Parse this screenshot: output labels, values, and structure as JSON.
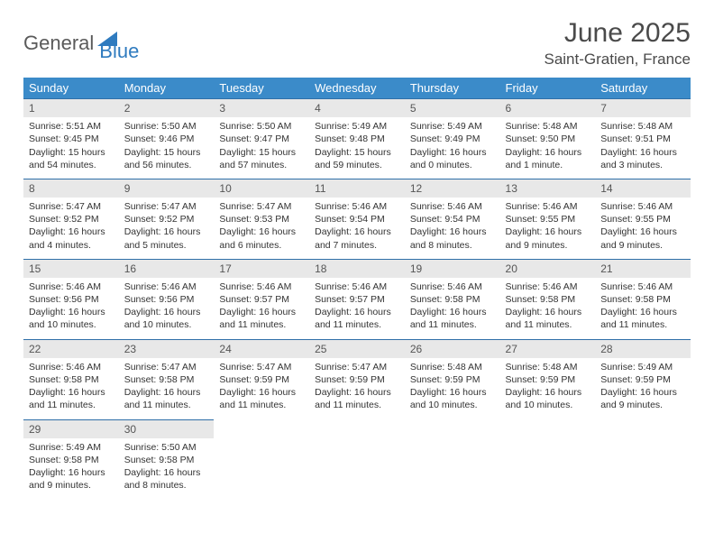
{
  "logo": {
    "text1": "General",
    "text2": "Blue"
  },
  "title": "June 2025",
  "location": "Saint-Gratien, France",
  "colors": {
    "header_bg": "#3b8bc9",
    "header_text": "#ffffff",
    "daynum_bg": "#e8e8e8",
    "daynum_border": "#2f6fa8",
    "text": "#333333",
    "logo_gray": "#5a5a5a",
    "logo_blue": "#2f7bbf"
  },
  "weekdays": [
    "Sunday",
    "Monday",
    "Tuesday",
    "Wednesday",
    "Thursday",
    "Friday",
    "Saturday"
  ],
  "weeks": [
    {
      "nums": [
        "1",
        "2",
        "3",
        "4",
        "5",
        "6",
        "7"
      ],
      "cells": [
        {
          "sunrise": "Sunrise: 5:51 AM",
          "sunset": "Sunset: 9:45 PM",
          "day1": "Daylight: 15 hours",
          "day2": "and 54 minutes."
        },
        {
          "sunrise": "Sunrise: 5:50 AM",
          "sunset": "Sunset: 9:46 PM",
          "day1": "Daylight: 15 hours",
          "day2": "and 56 minutes."
        },
        {
          "sunrise": "Sunrise: 5:50 AM",
          "sunset": "Sunset: 9:47 PM",
          "day1": "Daylight: 15 hours",
          "day2": "and 57 minutes."
        },
        {
          "sunrise": "Sunrise: 5:49 AM",
          "sunset": "Sunset: 9:48 PM",
          "day1": "Daylight: 15 hours",
          "day2": "and 59 minutes."
        },
        {
          "sunrise": "Sunrise: 5:49 AM",
          "sunset": "Sunset: 9:49 PM",
          "day1": "Daylight: 16 hours",
          "day2": "and 0 minutes."
        },
        {
          "sunrise": "Sunrise: 5:48 AM",
          "sunset": "Sunset: 9:50 PM",
          "day1": "Daylight: 16 hours",
          "day2": "and 1 minute."
        },
        {
          "sunrise": "Sunrise: 5:48 AM",
          "sunset": "Sunset: 9:51 PM",
          "day1": "Daylight: 16 hours",
          "day2": "and 3 minutes."
        }
      ]
    },
    {
      "nums": [
        "8",
        "9",
        "10",
        "11",
        "12",
        "13",
        "14"
      ],
      "cells": [
        {
          "sunrise": "Sunrise: 5:47 AM",
          "sunset": "Sunset: 9:52 PM",
          "day1": "Daylight: 16 hours",
          "day2": "and 4 minutes."
        },
        {
          "sunrise": "Sunrise: 5:47 AM",
          "sunset": "Sunset: 9:52 PM",
          "day1": "Daylight: 16 hours",
          "day2": "and 5 minutes."
        },
        {
          "sunrise": "Sunrise: 5:47 AM",
          "sunset": "Sunset: 9:53 PM",
          "day1": "Daylight: 16 hours",
          "day2": "and 6 minutes."
        },
        {
          "sunrise": "Sunrise: 5:46 AM",
          "sunset": "Sunset: 9:54 PM",
          "day1": "Daylight: 16 hours",
          "day2": "and 7 minutes."
        },
        {
          "sunrise": "Sunrise: 5:46 AM",
          "sunset": "Sunset: 9:54 PM",
          "day1": "Daylight: 16 hours",
          "day2": "and 8 minutes."
        },
        {
          "sunrise": "Sunrise: 5:46 AM",
          "sunset": "Sunset: 9:55 PM",
          "day1": "Daylight: 16 hours",
          "day2": "and 9 minutes."
        },
        {
          "sunrise": "Sunrise: 5:46 AM",
          "sunset": "Sunset: 9:55 PM",
          "day1": "Daylight: 16 hours",
          "day2": "and 9 minutes."
        }
      ]
    },
    {
      "nums": [
        "15",
        "16",
        "17",
        "18",
        "19",
        "20",
        "21"
      ],
      "cells": [
        {
          "sunrise": "Sunrise: 5:46 AM",
          "sunset": "Sunset: 9:56 PM",
          "day1": "Daylight: 16 hours",
          "day2": "and 10 minutes."
        },
        {
          "sunrise": "Sunrise: 5:46 AM",
          "sunset": "Sunset: 9:56 PM",
          "day1": "Daylight: 16 hours",
          "day2": "and 10 minutes."
        },
        {
          "sunrise": "Sunrise: 5:46 AM",
          "sunset": "Sunset: 9:57 PM",
          "day1": "Daylight: 16 hours",
          "day2": "and 11 minutes."
        },
        {
          "sunrise": "Sunrise: 5:46 AM",
          "sunset": "Sunset: 9:57 PM",
          "day1": "Daylight: 16 hours",
          "day2": "and 11 minutes."
        },
        {
          "sunrise": "Sunrise: 5:46 AM",
          "sunset": "Sunset: 9:58 PM",
          "day1": "Daylight: 16 hours",
          "day2": "and 11 minutes."
        },
        {
          "sunrise": "Sunrise: 5:46 AM",
          "sunset": "Sunset: 9:58 PM",
          "day1": "Daylight: 16 hours",
          "day2": "and 11 minutes."
        },
        {
          "sunrise": "Sunrise: 5:46 AM",
          "sunset": "Sunset: 9:58 PM",
          "day1": "Daylight: 16 hours",
          "day2": "and 11 minutes."
        }
      ]
    },
    {
      "nums": [
        "22",
        "23",
        "24",
        "25",
        "26",
        "27",
        "28"
      ],
      "cells": [
        {
          "sunrise": "Sunrise: 5:46 AM",
          "sunset": "Sunset: 9:58 PM",
          "day1": "Daylight: 16 hours",
          "day2": "and 11 minutes."
        },
        {
          "sunrise": "Sunrise: 5:47 AM",
          "sunset": "Sunset: 9:58 PM",
          "day1": "Daylight: 16 hours",
          "day2": "and 11 minutes."
        },
        {
          "sunrise": "Sunrise: 5:47 AM",
          "sunset": "Sunset: 9:59 PM",
          "day1": "Daylight: 16 hours",
          "day2": "and 11 minutes."
        },
        {
          "sunrise": "Sunrise: 5:47 AM",
          "sunset": "Sunset: 9:59 PM",
          "day1": "Daylight: 16 hours",
          "day2": "and 11 minutes."
        },
        {
          "sunrise": "Sunrise: 5:48 AM",
          "sunset": "Sunset: 9:59 PM",
          "day1": "Daylight: 16 hours",
          "day2": "and 10 minutes."
        },
        {
          "sunrise": "Sunrise: 5:48 AM",
          "sunset": "Sunset: 9:59 PM",
          "day1": "Daylight: 16 hours",
          "day2": "and 10 minutes."
        },
        {
          "sunrise": "Sunrise: 5:49 AM",
          "sunset": "Sunset: 9:59 PM",
          "day1": "Daylight: 16 hours",
          "day2": "and 9 minutes."
        }
      ]
    },
    {
      "nums": [
        "29",
        "30",
        "",
        "",
        "",
        "",
        ""
      ],
      "cells": [
        {
          "sunrise": "Sunrise: 5:49 AM",
          "sunset": "Sunset: 9:58 PM",
          "day1": "Daylight: 16 hours",
          "day2": "and 9 minutes."
        },
        {
          "sunrise": "Sunrise: 5:50 AM",
          "sunset": "Sunset: 9:58 PM",
          "day1": "Daylight: 16 hours",
          "day2": "and 8 minutes."
        },
        null,
        null,
        null,
        null,
        null
      ]
    }
  ]
}
